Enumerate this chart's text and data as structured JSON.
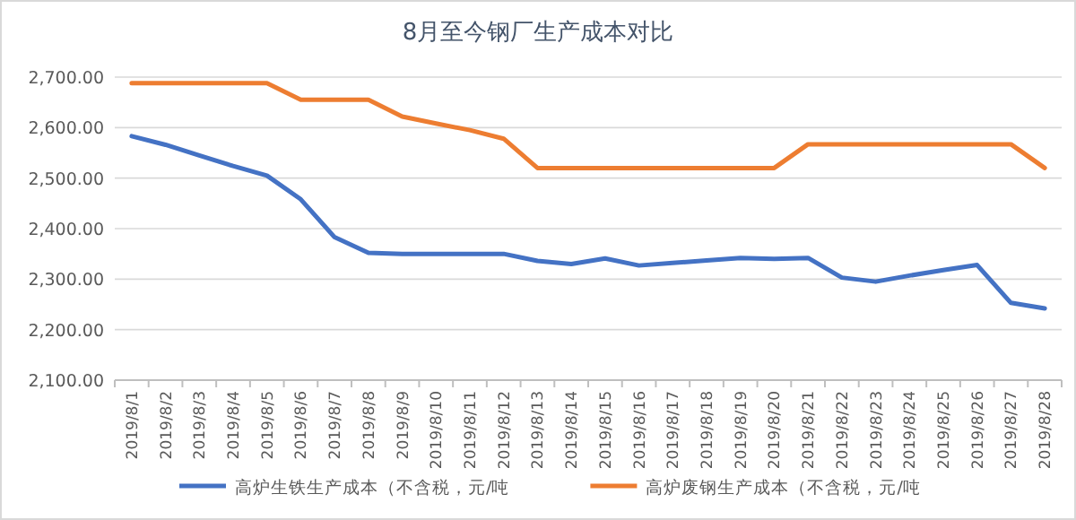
{
  "chart_data": {
    "type": "line",
    "title": "8月至今钢厂生产成本对比",
    "categories": [
      "2019/8/1",
      "2019/8/2",
      "2019/8/3",
      "2019/8/4",
      "2019/8/5",
      "2019/8/6",
      "2019/8/7",
      "2019/8/8",
      "2019/8/9",
      "2019/8/10",
      "2019/8/11",
      "2019/8/12",
      "2019/8/13",
      "2019/8/14",
      "2019/8/15",
      "2019/8/16",
      "2019/8/17",
      "2019/8/18",
      "2019/8/19",
      "2019/8/20",
      "2019/8/21",
      "2019/8/22",
      "2019/8/23",
      "2019/8/24",
      "2019/8/25",
      "2019/8/26",
      "2019/8/27",
      "2019/8/28"
    ],
    "series": [
      {
        "name": "高炉生铁生产成本（不含税，元/吨",
        "color": "#4472c4",
        "values": [
          2583,
          2566,
          2545,
          2524,
          2505,
          2458,
          2383,
          2352,
          2350,
          2350,
          2350,
          2350,
          2336,
          2330,
          2341,
          2327,
          2332,
          2337,
          2342,
          2340,
          2342,
          2303,
          2295,
          2307,
          2318,
          2328,
          2253,
          2242
        ]
      },
      {
        "name": "高炉废钢生产成本（不含税，元/吨",
        "color": "#ed7d31",
        "values": [
          2688,
          2688,
          2688,
          2688,
          2688,
          2655,
          2655,
          2655,
          2622,
          2608,
          2595,
          2578,
          2520,
          2520,
          2520,
          2520,
          2520,
          2520,
          2520,
          2520,
          2567,
          2567,
          2567,
          2567,
          2567,
          2567,
          2567,
          2520
        ]
      }
    ],
    "ylim": [
      2100,
      2700
    ],
    "yticks": [
      {
        "value": 2100,
        "label": "2,100.00"
      },
      {
        "value": 2200,
        "label": "2,200.00"
      },
      {
        "value": 2300,
        "label": "2,300.00"
      },
      {
        "value": 2400,
        "label": "2,400.00"
      },
      {
        "value": 2500,
        "label": "2,500.00"
      },
      {
        "value": 2600,
        "label": "2,600.00"
      },
      {
        "value": 2700,
        "label": "2,700.00"
      }
    ],
    "grid": "y",
    "legend": "bottom",
    "marker": "none",
    "line_style": "solid"
  }
}
